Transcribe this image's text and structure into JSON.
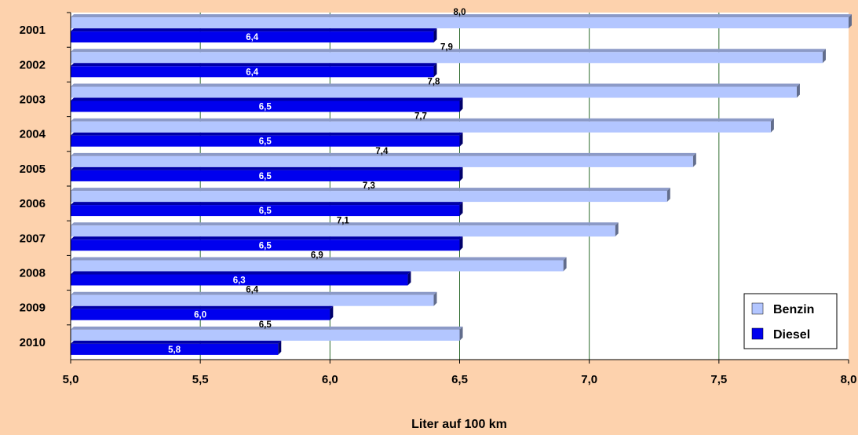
{
  "chart_data": {
    "type": "bar",
    "orientation": "horizontal",
    "categories": [
      "2001",
      "2002",
      "2003",
      "2004",
      "2005",
      "2006",
      "2007",
      "2008",
      "2009",
      "2010"
    ],
    "series": [
      {
        "name": "Benzin",
        "color": "#b3c6ff",
        "values": [
          8.0,
          7.9,
          7.8,
          7.7,
          7.4,
          7.3,
          7.1,
          6.9,
          6.4,
          6.5
        ],
        "labels": [
          "8,0",
          "7,9",
          "7,8",
          "7,7",
          "7,4",
          "7,3",
          "7,1",
          "6,9",
          "6,4",
          "6,5"
        ]
      },
      {
        "name": "Diesel",
        "color": "#0000ee",
        "values": [
          6.4,
          6.4,
          6.5,
          6.5,
          6.5,
          6.5,
          6.5,
          6.3,
          6.0,
          5.8
        ],
        "labels": [
          "6,4",
          "6,4",
          "6,5",
          "6,5",
          "6,5",
          "6,5",
          "6,5",
          "6,3",
          "6,0",
          "5,8"
        ]
      }
    ],
    "xlim": [
      5.0,
      8.0
    ],
    "xticks": [
      5.0,
      5.5,
      6.0,
      6.5,
      7.0,
      7.5,
      8.0
    ],
    "xtick_labels": [
      "5,0",
      "5,5",
      "6,0",
      "6,5",
      "7,0",
      "7,5",
      "8,0"
    ],
    "xlabel": "Liter auf 100 km",
    "ylabel": "",
    "grid": "vertical",
    "legend": "bottom-right",
    "background_color": "#fdd2ad",
    "plot_background_color": "#ffffff",
    "gridline_color": "#2e6b2e"
  }
}
